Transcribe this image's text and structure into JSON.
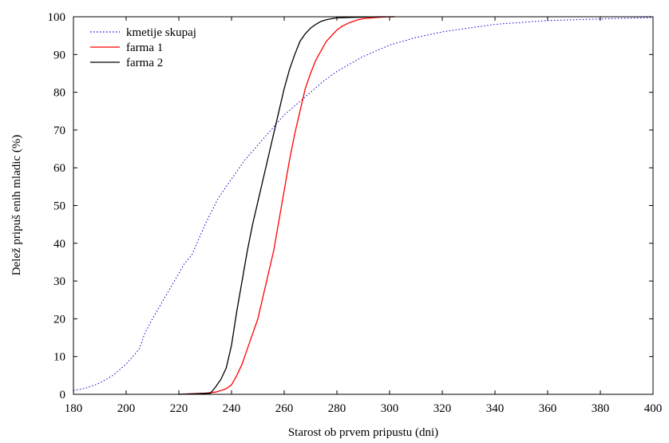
{
  "chart_data": {
    "type": "line",
    "xlabel": "Starost ob prvem pripustu (dni)",
    "ylabel": "Delež pripuš enih mladic (%)",
    "xlim": [
      180,
      400
    ],
    "ylim": [
      0,
      100
    ],
    "xticks": [
      180,
      200,
      220,
      240,
      260,
      280,
      300,
      320,
      340,
      360,
      380,
      400
    ],
    "yticks": [
      0,
      10,
      20,
      30,
      40,
      50,
      60,
      70,
      80,
      90,
      100
    ],
    "grid": false,
    "legend_position": "top-left",
    "series": [
      {
        "name": "kmetije skupaj",
        "color": "#0000cc",
        "dash": "dotted",
        "x": [
          180,
          185,
          190,
          195,
          200,
          205,
          207,
          210,
          215,
          220,
          222,
          225,
          230,
          235,
          240,
          245,
          250,
          255,
          260,
          265,
          270,
          275,
          280,
          285,
          290,
          295,
          300,
          310,
          320,
          330,
          340,
          350,
          360,
          370,
          380,
          390,
          400
        ],
        "y": [
          1,
          1.7,
          3,
          5,
          8,
          12,
          16,
          20,
          26,
          32,
          34.5,
          37,
          45,
          52,
          57,
          62,
          66,
          70,
          74,
          77,
          80,
          83,
          85.5,
          87.5,
          89.5,
          91,
          92.5,
          94.5,
          96,
          97,
          98,
          98.5,
          99,
          99.2,
          99.4,
          99.6,
          99.8
        ]
      },
      {
        "name": "farma 1",
        "color": "#ff0000",
        "dash": "solid",
        "x": [
          220,
          230,
          234,
          236,
          238,
          240,
          242,
          244,
          246,
          248,
          250,
          252,
          254,
          256,
          258,
          260,
          262,
          264,
          266,
          268,
          270,
          272,
          274,
          276,
          278,
          280,
          282,
          285,
          288,
          290,
          295,
          300,
          302
        ],
        "y": [
          0,
          0.3,
          0.6,
          1,
          1.5,
          2.5,
          5,
          8,
          12,
          16,
          20,
          26,
          32,
          38,
          46,
          54,
          62,
          69,
          75,
          81,
          85,
          88.5,
          91,
          93.5,
          95,
          96.5,
          97.5,
          98.5,
          99.2,
          99.5,
          99.8,
          100,
          100
        ]
      },
      {
        "name": "farma 2",
        "color": "#000000",
        "dash": "solid",
        "x": [
          220,
          232,
          234,
          236,
          238,
          240,
          242,
          244,
          246,
          248,
          250,
          252,
          254,
          256,
          258,
          260,
          262,
          264,
          266,
          268,
          270,
          272,
          274,
          276,
          278,
          280,
          285,
          290,
          295,
          300,
          302
        ],
        "y": [
          0,
          0.3,
          2,
          4,
          7,
          13,
          22,
          30,
          38,
          45,
          51,
          57,
          63,
          69,
          75,
          81,
          86,
          90,
          93.5,
          95.5,
          97,
          98,
          98.8,
          99.2,
          99.5,
          99.7,
          99.8,
          99.9,
          100,
          100,
          100
        ]
      }
    ]
  }
}
